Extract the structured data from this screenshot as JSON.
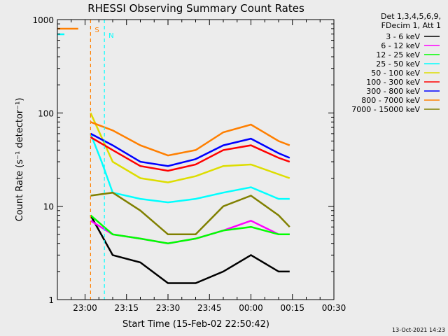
{
  "chart_data": {
    "type": "line",
    "title": "RHESSI Observing Summary Count Rates",
    "xlabel": "Start Time (15-Feb-02 22:50:42)",
    "ylabel": "Count Rate (s⁻¹ detector⁻¹)",
    "y_scale": "log",
    "ylim": [
      1,
      1000
    ],
    "xlim": [
      "22:50",
      "00:30"
    ],
    "x_ticks": [
      "23:00",
      "23:15",
      "23:30",
      "23:45",
      "00:00",
      "00:15",
      "00:30"
    ],
    "y_ticks": [
      "1",
      "10",
      "100",
      "1000"
    ],
    "legend_header": [
      "Det 1,3,4,5,6,9,",
      "FDecim 1, Att 1"
    ],
    "legend_position": "right",
    "timestamp": "13-Oct-2021 14:23",
    "markers": [
      {
        "label": "S",
        "color": "#ff7f00",
        "time": "22:55-23:02"
      },
      {
        "label": "N",
        "color": "#00ffff",
        "time": "22:50-23:07"
      }
    ],
    "series": [
      {
        "name": "3 - 6 keV",
        "color": "#000000",
        "x": [
          "23:02",
          "23:10",
          "23:20",
          "23:30",
          "23:40",
          "23:50",
          "00:00",
          "00:10",
          "00:14"
        ],
        "y": [
          8,
          3,
          2.5,
          1.5,
          1.5,
          2,
          3,
          2,
          2
        ]
      },
      {
        "name": "6 - 12 keV",
        "color": "#ff00ff",
        "x": [
          "23:02",
          "23:10",
          "23:20",
          "23:30",
          "23:40",
          "23:50",
          "00:00",
          "00:10",
          "00:14"
        ],
        "y": [
          7,
          5,
          4.5,
          4,
          4.5,
          5.5,
          7,
          5,
          5
        ]
      },
      {
        "name": "12 - 25 keV",
        "color": "#00ff00",
        "x": [
          "23:02",
          "23:10",
          "23:20",
          "23:30",
          "23:40",
          "23:50",
          "00:00",
          "00:10",
          "00:14"
        ],
        "y": [
          8,
          5,
          4.5,
          4,
          4.5,
          5.5,
          6,
          5,
          5
        ]
      },
      {
        "name": "25 - 50 keV",
        "color": "#00ffff",
        "x": [
          "23:02",
          "23:06",
          "23:10",
          "23:20",
          "23:30",
          "23:40",
          "23:50",
          "00:00",
          "00:10",
          "00:14"
        ],
        "y": [
          60,
          30,
          14,
          12,
          11,
          12,
          14,
          16,
          12,
          12
        ]
      },
      {
        "name": "50 - 100 keV",
        "color": "#dddd00",
        "x": [
          "23:02",
          "23:10",
          "23:20",
          "23:30",
          "23:40",
          "23:50",
          "00:00",
          "00:10",
          "00:14"
        ],
        "y": [
          100,
          30,
          20,
          18,
          21,
          27,
          28,
          22,
          20
        ]
      },
      {
        "name": "100 - 300 keV",
        "color": "#ff0000",
        "x": [
          "23:02",
          "23:10",
          "23:20",
          "23:30",
          "23:40",
          "23:50",
          "00:00",
          "00:10",
          "00:14"
        ],
        "y": [
          55,
          40,
          27,
          24,
          28,
          40,
          45,
          33,
          30
        ]
      },
      {
        "name": "300 - 800 keV",
        "color": "#0000ff",
        "x": [
          "23:02",
          "23:10",
          "23:20",
          "23:30",
          "23:40",
          "23:50",
          "00:00",
          "00:10",
          "00:14"
        ],
        "y": [
          60,
          45,
          30,
          27,
          32,
          45,
          53,
          37,
          33
        ]
      },
      {
        "name": "800 - 7000 keV",
        "color": "#ff7f00",
        "x": [
          "23:02",
          "23:10",
          "23:20",
          "23:30",
          "23:40",
          "23:50",
          "00:00",
          "00:10",
          "00:14"
        ],
        "y": [
          80,
          65,
          45,
          35,
          40,
          62,
          75,
          50,
          45
        ]
      },
      {
        "name": "7000 - 15000 keV",
        "color": "#808000",
        "x": [
          "23:02",
          "23:10",
          "23:20",
          "23:30",
          "23:40",
          "23:50",
          "00:00",
          "00:10",
          "00:14"
        ],
        "y": [
          13,
          14,
          9,
          5,
          5,
          10,
          13,
          8,
          6
        ]
      }
    ]
  }
}
